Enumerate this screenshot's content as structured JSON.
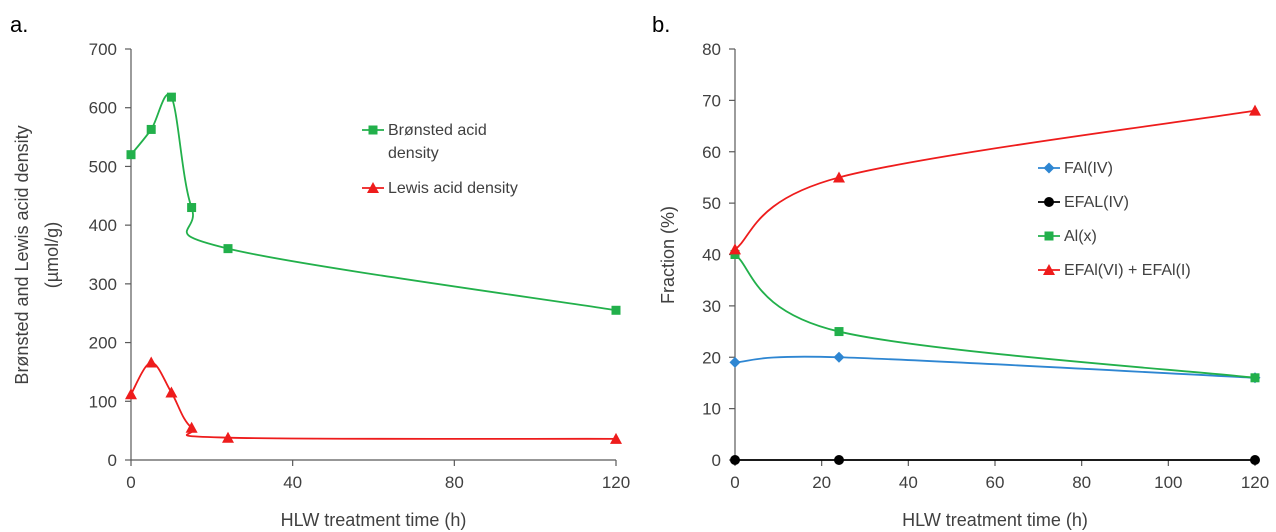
{
  "chart_data": [
    {
      "panel_label": "a.",
      "type": "line",
      "xlabel": "HLW treatment time (h)",
      "ylabel_lines": [
        "Brønsted and Lewis acid density",
        "(µmol/g)"
      ],
      "xlim": [
        0,
        120
      ],
      "ylim": [
        0,
        700
      ],
      "xticks": [
        0,
        40,
        80,
        120
      ],
      "yticks": [
        0,
        100,
        200,
        300,
        400,
        500,
        600,
        700
      ],
      "grid": false,
      "legend_position": "upper-right",
      "series": [
        {
          "name_lines": [
            "Brønsted acid",
            "density"
          ],
          "color": "#22b04b",
          "marker": "square",
          "x": [
            0,
            5,
            10,
            15,
            24,
            120
          ],
          "y": [
            520,
            563,
            618,
            430,
            360,
            255
          ]
        },
        {
          "name_lines": [
            "Lewis acid density"
          ],
          "color": "#ee1c1c",
          "marker": "triangle",
          "x": [
            0,
            5,
            10,
            15,
            24,
            120
          ],
          "y": [
            112,
            166,
            115,
            55,
            38,
            36
          ]
        }
      ]
    },
    {
      "panel_label": "b.",
      "type": "line",
      "xlabel": "HLW treatment time (h)",
      "ylabel_lines": [
        "Fraction (%)"
      ],
      "xlim": [
        0,
        120
      ],
      "ylim": [
        0,
        80
      ],
      "xticks": [
        0,
        20,
        40,
        60,
        80,
        100,
        120
      ],
      "yticks": [
        0,
        10,
        20,
        30,
        40,
        50,
        60,
        70,
        80
      ],
      "grid": false,
      "legend_position": "right",
      "series": [
        {
          "name_lines": [
            "FAl(IV)"
          ],
          "color": "#2e86d2",
          "marker": "diamond",
          "x": [
            0,
            24,
            120
          ],
          "y": [
            19,
            20,
            16
          ]
        },
        {
          "name_lines": [
            "EFAL(IV)"
          ],
          "color": "#000000",
          "marker": "circle",
          "x": [
            0,
            24,
            120
          ],
          "y": [
            0,
            0,
            0
          ]
        },
        {
          "name_lines": [
            "Al(x)"
          ],
          "color": "#22b04b",
          "marker": "square",
          "x": [
            0,
            24,
            120
          ],
          "y": [
            40,
            25,
            16
          ]
        },
        {
          "name_lines": [
            "EFAl(VI) + EFAl(I)"
          ],
          "color": "#ee1c1c",
          "marker": "triangle",
          "x": [
            0,
            24,
            120
          ],
          "y": [
            41,
            55,
            68
          ]
        }
      ]
    }
  ]
}
